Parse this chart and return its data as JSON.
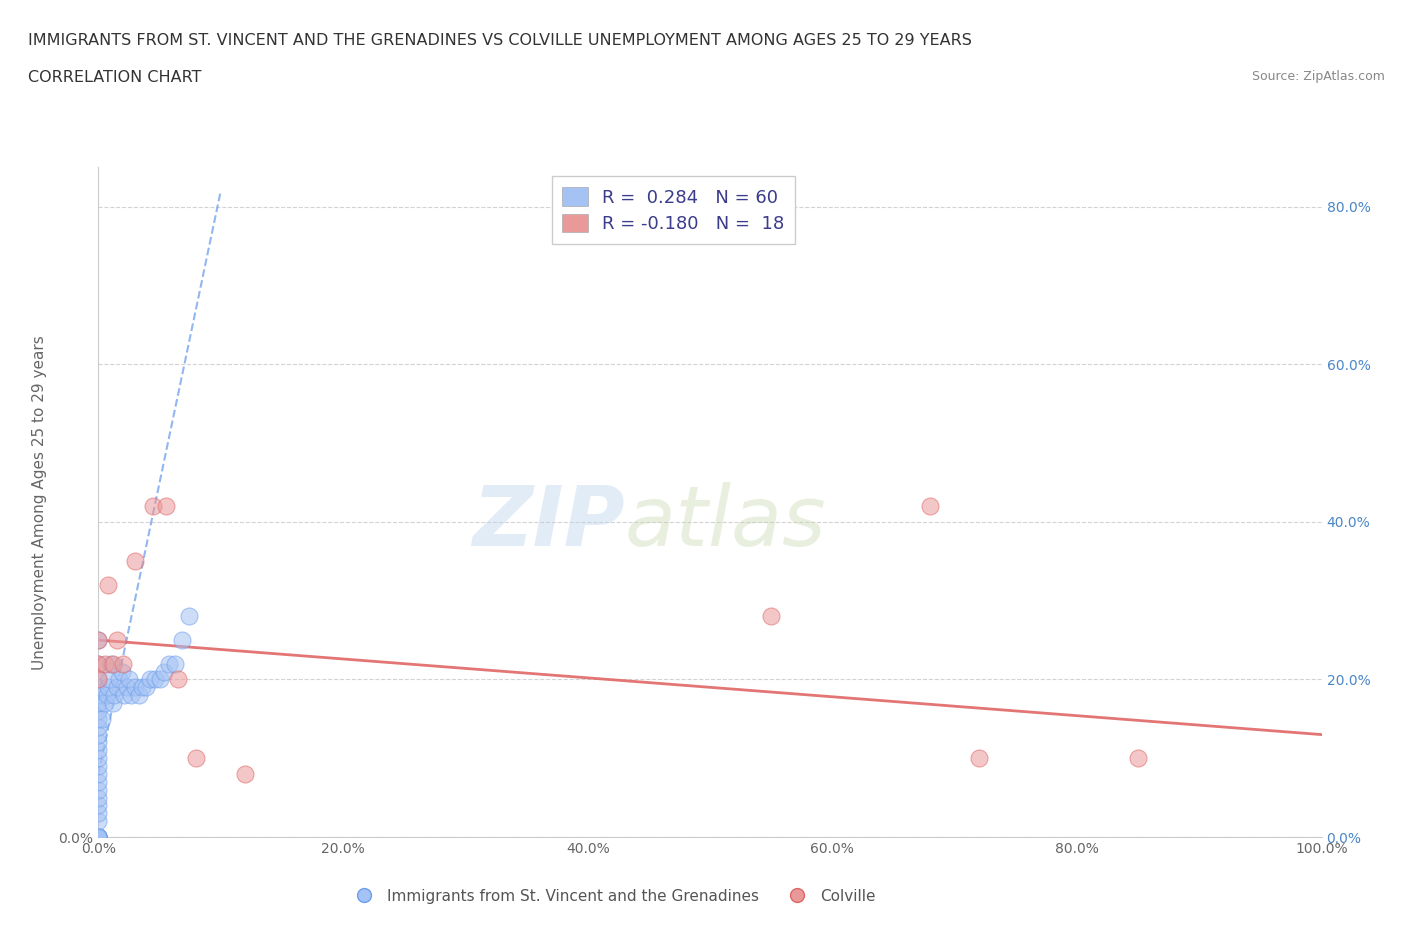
{
  "title_line1": "IMMIGRANTS FROM ST. VINCENT AND THE GRENADINES VS COLVILLE UNEMPLOYMENT AMONG AGES 25 TO 29 YEARS",
  "title_line2": "CORRELATION CHART",
  "source_text": "Source: ZipAtlas.com",
  "ylabel": "Unemployment Among Ages 25 to 29 years",
  "xlim": [
    0.0,
    1.0
  ],
  "ylim": [
    0.0,
    0.85
  ],
  "x_tick_labels": [
    "0.0%",
    "",
    "20.0%",
    "",
    "40.0%",
    "",
    "60.0%",
    "",
    "80.0%",
    "",
    "100.0%"
  ],
  "x_tick_vals": [
    0.0,
    0.1,
    0.2,
    0.3,
    0.4,
    0.5,
    0.6,
    0.7,
    0.8,
    0.9,
    1.0
  ],
  "y_tick_labels": [
    "0.0%",
    "20.0%",
    "40.0%",
    "60.0%",
    "80.0%"
  ],
  "y_tick_vals": [
    0.0,
    0.2,
    0.4,
    0.6,
    0.8
  ],
  "blue_color": "#a4c2f4",
  "pink_color": "#ea9999",
  "blue_line_color": "#6d9eeb",
  "pink_line_color": "#e06666",
  "legend_R1": "R =  0.284",
  "legend_N1": "N = 60",
  "legend_R2": "R = -0.180",
  "legend_N2": "N =  18",
  "watermark_zip": "ZIP",
  "watermark_atlas": "atlas",
  "blue_scatter_x": [
    0.0,
    0.0,
    0.0,
    0.0,
    0.0,
    0.0,
    0.0,
    0.0,
    0.0,
    0.0,
    0.0,
    0.0,
    0.0,
    0.0,
    0.0,
    0.0,
    0.0,
    0.0,
    0.0,
    0.0,
    0.0,
    0.0,
    0.0,
    0.0,
    0.0,
    0.0,
    0.0,
    0.0,
    0.0,
    0.0,
    0.0,
    0.0,
    0.0,
    0.003,
    0.005,
    0.007,
    0.008,
    0.009,
    0.01,
    0.012,
    0.013,
    0.015,
    0.017,
    0.019,
    0.021,
    0.023,
    0.025,
    0.027,
    0.03,
    0.033,
    0.036,
    0.039,
    0.042,
    0.046,
    0.05,
    0.054,
    0.058,
    0.063,
    0.068,
    0.074
  ],
  "blue_scatter_y": [
    0.0,
    0.0,
    0.0,
    0.0,
    0.0,
    0.0,
    0.0,
    0.0,
    0.0,
    0.0,
    0.0,
    0.0,
    0.02,
    0.03,
    0.04,
    0.05,
    0.06,
    0.07,
    0.08,
    0.09,
    0.1,
    0.11,
    0.12,
    0.13,
    0.14,
    0.15,
    0.16,
    0.17,
    0.18,
    0.19,
    0.2,
    0.22,
    0.25,
    0.15,
    0.17,
    0.18,
    0.19,
    0.2,
    0.22,
    0.17,
    0.18,
    0.19,
    0.2,
    0.21,
    0.18,
    0.19,
    0.2,
    0.18,
    0.19,
    0.18,
    0.19,
    0.19,
    0.2,
    0.2,
    0.2,
    0.21,
    0.22,
    0.22,
    0.25,
    0.28
  ],
  "pink_scatter_x": [
    0.0,
    0.0,
    0.0,
    0.005,
    0.008,
    0.012,
    0.015,
    0.02,
    0.03,
    0.045,
    0.055,
    0.065,
    0.08,
    0.12,
    0.55,
    0.68,
    0.72,
    0.85
  ],
  "pink_scatter_y": [
    0.25,
    0.22,
    0.2,
    0.22,
    0.32,
    0.22,
    0.25,
    0.22,
    0.35,
    0.42,
    0.42,
    0.2,
    0.1,
    0.08,
    0.28,
    0.42,
    0.1,
    0.1
  ],
  "blue_trendline_x": [
    0.0,
    0.1
  ],
  "blue_trendline_y": [
    0.08,
    0.82
  ],
  "pink_trendline_x": [
    0.0,
    1.0
  ],
  "pink_trendline_y": [
    0.25,
    0.13
  ],
  "background_color": "#ffffff",
  "grid_color": "#c9c9c9",
  "title_color": "#333333",
  "axis_label_color": "#666666",
  "legend_text_color": "#3c3c8c",
  "right_tick_color": "#4a86c8",
  "bottom_legend_label1": "Immigrants from St. Vincent and the Grenadines",
  "bottom_legend_label2": "Colville"
}
